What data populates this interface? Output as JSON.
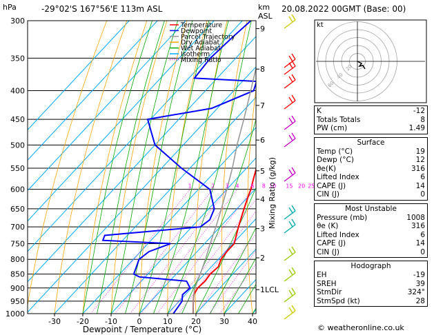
{
  "header": {
    "pressure_unit": "hPa",
    "location": "-29°02'S 167°56'E 113m ASL",
    "height_unit_1": "km",
    "height_unit_2": "ASL",
    "datetime": "20.08.2022 00GMT (Base: 00)"
  },
  "legend": [
    {
      "name": "Temperature",
      "color": "#ff0000"
    },
    {
      "name": "Dewpoint",
      "color": "#0000ff"
    },
    {
      "name": "Parcel Trajectory",
      "color": "#999999"
    },
    {
      "name": "Dry Adiabat",
      "color": "#ffa500"
    },
    {
      "name": "Wet Adiabat",
      "color": "#00aa00"
    },
    {
      "name": "Isotherm",
      "color": "#00aaff"
    },
    {
      "name": "Mixing Ratio",
      "color": "#ff00ff"
    }
  ],
  "chart_data": {
    "type": "line",
    "title": "",
    "xlabel": "Dewpoint / Temperature (°C)",
    "ylabel": "hPa",
    "right_axis_label": "Mixing Ratio (g/kg)",
    "x_ticks": [
      -30,
      -20,
      -10,
      0,
      10,
      20,
      30,
      40
    ],
    "pressure_ticks": [
      300,
      350,
      400,
      450,
      500,
      550,
      600,
      650,
      700,
      750,
      800,
      850,
      900,
      950,
      1000
    ],
    "height_km_ticks": [
      {
        "km": "9",
        "p": 310
      },
      {
        "km": "8",
        "p": 366
      },
      {
        "km": "7",
        "p": 425
      },
      {
        "km": "6",
        "p": 490
      },
      {
        "km": "5",
        "p": 556
      },
      {
        "km": "4",
        "p": 625
      },
      {
        "km": "3",
        "p": 705
      },
      {
        "km": "2",
        "p": 795
      },
      {
        "km": "1LCL",
        "p": 906
      }
    ],
    "mixing_ratio_labels": [
      "1",
      "2",
      "3",
      "4",
      "6",
      "8",
      "10",
      "15",
      "20",
      "25"
    ],
    "series": [
      {
        "name": "Temperature",
        "color": "#ff0000",
        "points": [
          [
            1000,
            19
          ],
          [
            975,
            17
          ],
          [
            950,
            15
          ],
          [
            925,
            13
          ],
          [
            900,
            12.2
          ],
          [
            875,
            12.5
          ],
          [
            850,
            12
          ],
          [
            825,
            12.5
          ],
          [
            800,
            11
          ],
          [
            775,
            10.5
          ],
          [
            750,
            10.5
          ],
          [
            725,
            8.5
          ],
          [
            700,
            6.5
          ],
          [
            675,
            4.5
          ],
          [
            650,
            2.5
          ],
          [
            625,
            0.5
          ],
          [
            600,
            -1.5
          ],
          [
            575,
            -4
          ],
          [
            550,
            -6.5
          ],
          [
            525,
            -9.5
          ],
          [
            500,
            -13
          ],
          [
            475,
            -15
          ],
          [
            450,
            -18
          ],
          [
            425,
            -20.5
          ],
          [
            400,
            -25
          ],
          [
            375,
            -28
          ],
          [
            350,
            -32
          ],
          [
            325,
            -36
          ],
          [
            300,
            -41
          ]
        ]
      },
      {
        "name": "Dewpoint",
        "color": "#0000ff",
        "points": [
          [
            1000,
            12
          ],
          [
            975,
            11.5
          ],
          [
            950,
            11
          ],
          [
            925,
            9
          ],
          [
            900,
            9.5
          ],
          [
            875,
            6
          ],
          [
            860,
            -12
          ],
          [
            850,
            -15
          ],
          [
            800,
            -18
          ],
          [
            775,
            -17
          ],
          [
            750,
            -12
          ],
          [
            740,
            -37
          ],
          [
            725,
            -38
          ],
          [
            700,
            -7
          ],
          [
            680,
            -6
          ],
          [
            650,
            -8
          ],
          [
            600,
            -16
          ],
          [
            550,
            -33
          ],
          [
            500,
            -50
          ],
          [
            450,
            -61
          ],
          [
            430,
            -42
          ],
          [
            400,
            -33
          ],
          [
            385,
            -35
          ],
          [
            380,
            -58
          ],
          [
            350,
            -59
          ],
          [
            320,
            -58
          ],
          [
            300,
            -57
          ]
        ]
      },
      {
        "name": "Parcel Trajectory",
        "color": "#999999",
        "points": [
          [
            1000,
            19
          ],
          [
            950,
            15
          ],
          [
            906,
            11.5
          ],
          [
            850,
            8.5
          ],
          [
            800,
            5.5
          ],
          [
            750,
            2
          ],
          [
            700,
            -1.5
          ],
          [
            650,
            -5.5
          ],
          [
            600,
            -10
          ],
          [
            550,
            -15
          ],
          [
            500,
            -21
          ],
          [
            450,
            -27
          ],
          [
            400,
            -34
          ],
          [
            350,
            -42
          ],
          [
            300,
            -51
          ]
        ]
      }
    ]
  },
  "hodograph": {
    "label": "kt",
    "ring_labels": [
      "20",
      "40",
      "60",
      "80",
      "120"
    ]
  },
  "indices": [
    {
      "label": "K",
      "value": "-12"
    },
    {
      "label": "Totals Totals",
      "value": "8"
    },
    {
      "label": "PW (cm)",
      "value": "1.49"
    }
  ],
  "surface": {
    "title": "Surface",
    "rows": [
      {
        "label": "Temp (°C)",
        "value": "19"
      },
      {
        "label": "Dewp (°C)",
        "value": "12"
      },
      {
        "label": "θe(K)",
        "value": "316"
      },
      {
        "label": "Lifted Index",
        "value": "6"
      },
      {
        "label": "CAPE (J)",
        "value": "14"
      },
      {
        "label": "CIN (J)",
        "value": "0"
      }
    ]
  },
  "most_unstable": {
    "title": "Most Unstable",
    "rows": [
      {
        "label": "Pressure (mb)",
        "value": "1008"
      },
      {
        "label": "θe (K)",
        "value": "316"
      },
      {
        "label": "Lifted Index",
        "value": "6"
      },
      {
        "label": "CAPE (J)",
        "value": "14"
      },
      {
        "label": "CIN (J)",
        "value": "0"
      }
    ]
  },
  "hodograph_params": {
    "title": "Hodograph",
    "rows": [
      {
        "label": "EH",
        "value": "-19"
      },
      {
        "label": "SREH",
        "value": "39"
      },
      {
        "label": "StmDir",
        "value": "324°"
      },
      {
        "label": "StmSpd (kt)",
        "value": "28"
      }
    ]
  },
  "credit": "© weatheronline.co.uk"
}
